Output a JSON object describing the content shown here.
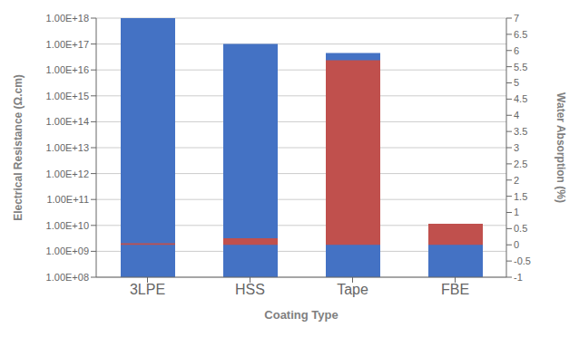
{
  "chart_data": {
    "type": "bar",
    "xlabel": "Coating Type",
    "ylabel": "Electrical Resistance (Ω.cm)",
    "y2label": "Water Absorption (%)",
    "categories": [
      "3LPE",
      "HSS",
      "Tape",
      "FBE"
    ],
    "series": [
      {
        "color": "#4472C4",
        "values": [
          1e+18,
          1e+17,
          4.5e+16,
          10000000000.0
        ]
      },
      {
        "color": "#C0504D",
        "values": [
          0.05,
          0.2,
          5.7,
          0.65
        ],
        "axis": "y2"
      }
    ],
    "log": "y",
    "ylim": [
      100000000.0,
      1e+18
    ],
    "yticks": [
      {
        "value": 100000000.0,
        "label": "1.00E+08"
      },
      {
        "value": 1000000000.0,
        "label": "1.00E+09"
      },
      {
        "value": 10000000000.0,
        "label": "1.00E+10"
      },
      {
        "value": 100000000000.0,
        "label": "1.00E+11"
      },
      {
        "value": 1000000000000.0,
        "label": "1.00E+12"
      },
      {
        "value": 10000000000000.0,
        "label": "1.00E+13"
      },
      {
        "value": 100000000000000.0,
        "label": "1.00E+14"
      },
      {
        "value": 1000000000000000.0,
        "label": "1.00E+15"
      },
      {
        "value": 1e+16,
        "label": "1.00E+16"
      },
      {
        "value": 1e+17,
        "label": "1.00E+17"
      },
      {
        "value": 1e+18,
        "label": "1.00E+18"
      }
    ],
    "y2lim": [
      -1,
      7
    ],
    "y2ticks": [
      -1,
      -0.5,
      0,
      0.5,
      1,
      1.5,
      2,
      2.5,
      3,
      3.5,
      4,
      4.5,
      5,
      5.5,
      6,
      6.5,
      7
    ],
    "grid": true
  }
}
